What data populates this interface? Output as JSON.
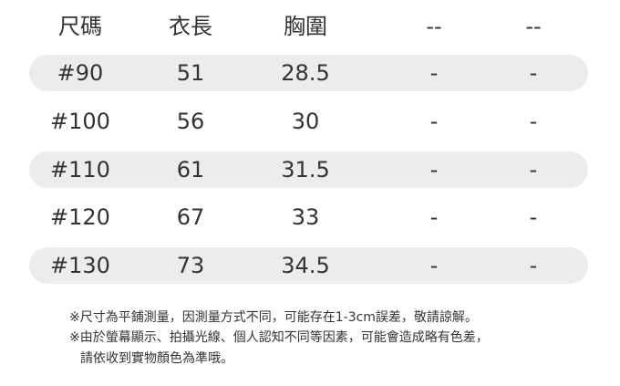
{
  "table": {
    "header": [
      "尺碼",
      "衣長",
      "胸圍",
      "--",
      "--"
    ],
    "rows": [
      [
        "#90",
        "51",
        "28.5",
        "-",
        "-"
      ],
      [
        "#100",
        "56",
        "30",
        "-",
        "-"
      ],
      [
        "#110",
        "61",
        "31.5",
        "-",
        "-"
      ],
      [
        "#120",
        "67",
        "33",
        "-",
        "-"
      ],
      [
        "#130",
        "73",
        "34.5",
        "-",
        "-"
      ]
    ]
  },
  "notes": [
    "※尺寸為平鋪測量，因測量方式不同，可能存在1-3cm誤差，敬請諒解。",
    "※由於螢幕顯示、拍攝光線、個人認知不同等因素，可能會造成略有色差，",
    "請依收到實物顏色為準哦。"
  ]
}
